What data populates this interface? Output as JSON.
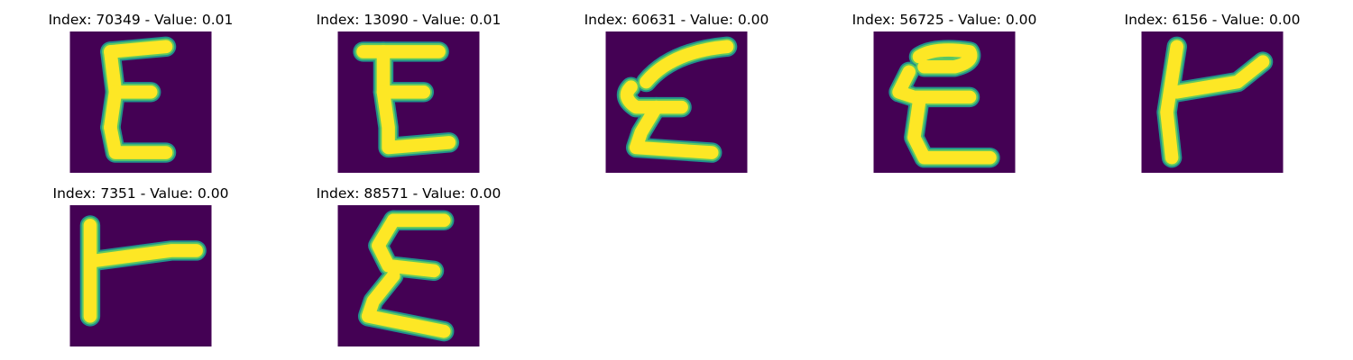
{
  "colors": {
    "background": "#440154",
    "stroke_edge": "#21918c",
    "stroke_mid": "#5ec962",
    "stroke_core": "#fde725"
  },
  "panels": [
    {
      "title": "Index: 70349 - Value: 0.01",
      "glyph": "E"
    },
    {
      "title": "Index: 13090 - Value: 0.01",
      "glyph": "E"
    },
    {
      "title": "Index: 60631 - Value: 0.00",
      "glyph": "E"
    },
    {
      "title": "Index: 56725 - Value: 0.00",
      "glyph": "E"
    },
    {
      "title": "Index: 6156 - Value: 0.00",
      "glyph": "T-left"
    },
    {
      "title": "Index: 7351 - Value: 0.00",
      "glyph": "T-left"
    },
    {
      "title": "Index: 88571 - Value: 0.00",
      "glyph": "E"
    }
  ]
}
